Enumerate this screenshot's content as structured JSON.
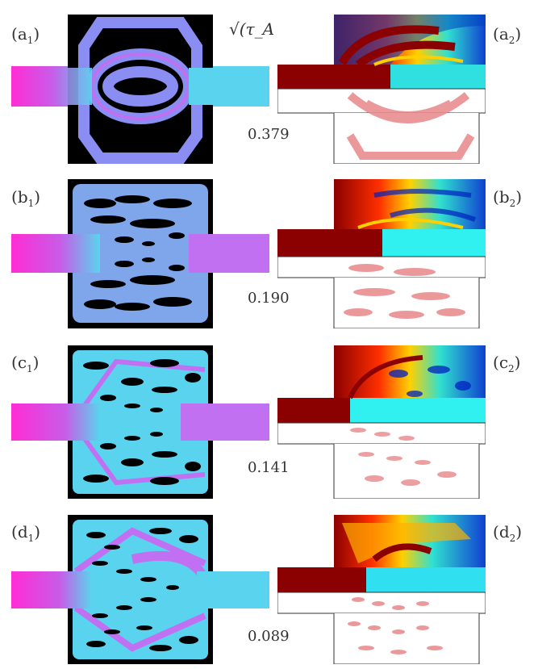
{
  "figure": {
    "quantity_label": "√(τ_A τ_R)/τ_D",
    "rows": [
      {
        "left_label": "a",
        "right_label": "a",
        "value": "0.379"
      },
      {
        "left_label": "b",
        "right_label": "b",
        "value": "0.190"
      },
      {
        "left_label": "c",
        "right_label": "c",
        "value": "0.141"
      },
      {
        "left_label": "d",
        "right_label": "d",
        "value": "0.089"
      }
    ],
    "left_subscript": "1",
    "right_subscript": "2",
    "colors": {
      "solid": "#000000",
      "fluid_inner": "#5ad4ee",
      "fluid_edge": "#b06cf0",
      "inlet": "#ff2cd4",
      "hot": "#8b0000",
      "cold": "#0020c0",
      "pink": "#e8878a"
    }
  }
}
